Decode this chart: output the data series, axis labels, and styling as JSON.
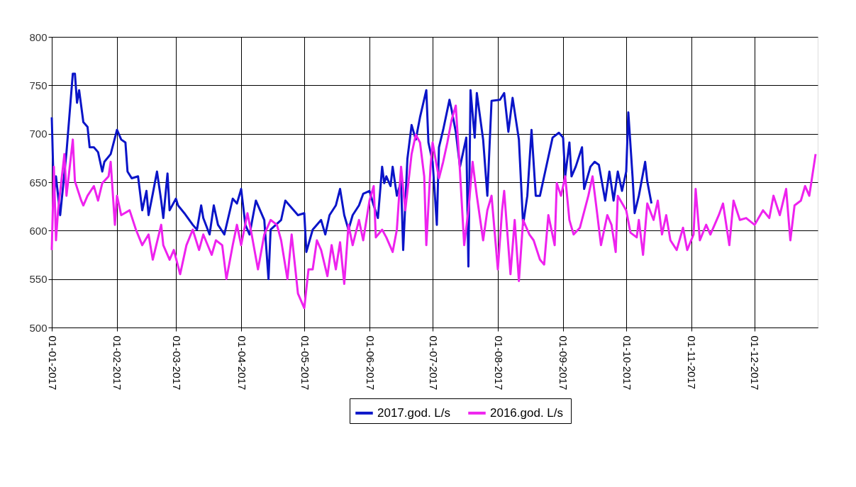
{
  "chart_data": {
    "type": "line",
    "xlim": [
      "2017-01-01",
      "2017-12-31"
    ],
    "xticks": [
      {
        "value": "2017-01-01",
        "label": "01-01-2017"
      },
      {
        "value": "2017-02-01",
        "label": "01-02-2017"
      },
      {
        "value": "2017-03-01",
        "label": "01-03-2017"
      },
      {
        "value": "2017-04-01",
        "label": "01-04-2017"
      },
      {
        "value": "2017-05-01",
        "label": "01-05-2017"
      },
      {
        "value": "2017-06-01",
        "label": "01-06-2017"
      },
      {
        "value": "2017-07-01",
        "label": "01-07-2017"
      },
      {
        "value": "2017-08-01",
        "label": "01-08-2017"
      },
      {
        "value": "2017-09-01",
        "label": "01-09-2017"
      },
      {
        "value": "2017-10-01",
        "label": "01-10-2017"
      },
      {
        "value": "2017-11-01",
        "label": "01-11-2017"
      },
      {
        "value": "2017-12-01",
        "label": "01-12-2017"
      }
    ],
    "ylim": [
      500,
      800
    ],
    "yticks": [
      500,
      550,
      600,
      650,
      700,
      750,
      800
    ],
    "grid": true,
    "legend": "bottom",
    "marker": "none",
    "line_style": "solid",
    "series": [
      {
        "name": "2017.god.  L/s",
        "color": "#0a14c8",
        "x": [
          "2017-01-01",
          "2017-01-02",
          "2017-01-03",
          "2017-01-05",
          "2017-01-08",
          "2017-01-11",
          "2017-01-12",
          "2017-01-13",
          "2017-01-14",
          "2017-01-16",
          "2017-01-18",
          "2017-01-19",
          "2017-01-21",
          "2017-01-23",
          "2017-01-25",
          "2017-01-26",
          "2017-01-29",
          "2017-02-01",
          "2017-02-03",
          "2017-02-05",
          "2017-02-06",
          "2017-02-08",
          "2017-02-11",
          "2017-02-13",
          "2017-02-15",
          "2017-02-16",
          "2017-02-18",
          "2017-02-20",
          "2017-02-22",
          "2017-02-23",
          "2017-02-25",
          "2017-02-26",
          "2017-03-01",
          "2017-03-02",
          "2017-03-05",
          "2017-03-09",
          "2017-03-11",
          "2017-03-13",
          "2017-03-14",
          "2017-03-17",
          "2017-03-19",
          "2017-03-21",
          "2017-03-24",
          "2017-03-28",
          "2017-03-30",
          "2017-04-01",
          "2017-04-03",
          "2017-04-05",
          "2017-04-08",
          "2017-04-12",
          "2017-04-14",
          "2017-04-15",
          "2017-04-20",
          "2017-04-22",
          "2017-04-28",
          "2017-05-01",
          "2017-05-02",
          "2017-05-05",
          "2017-05-09",
          "2017-05-11",
          "2017-05-13",
          "2017-05-16",
          "2017-05-18",
          "2017-05-20",
          "2017-05-22",
          "2017-05-24",
          "2017-05-27",
          "2017-05-29",
          "2017-06-01",
          "2017-06-03",
          "2017-06-05",
          "2017-06-07",
          "2017-06-08",
          "2017-06-09",
          "2017-06-11",
          "2017-06-12",
          "2017-06-14",
          "2017-06-16",
          "2017-06-17",
          "2017-06-19",
          "2017-06-21",
          "2017-06-23",
          "2017-06-25",
          "2017-06-28",
          "2017-06-29",
          "2017-07-01",
          "2017-07-03",
          "2017-07-04",
          "2017-07-06",
          "2017-07-09",
          "2017-07-10",
          "2017-07-12",
          "2017-07-14",
          "2017-07-17",
          "2017-07-18",
          "2017-07-19",
          "2017-07-21",
          "2017-07-22",
          "2017-07-25",
          "2017-07-27",
          "2017-07-29",
          "2017-08-02",
          "2017-08-04",
          "2017-08-06",
          "2017-08-08",
          "2017-08-11",
          "2017-08-13",
          "2017-08-15",
          "2017-08-17",
          "2017-08-19",
          "2017-08-21",
          "2017-08-23",
          "2017-08-27",
          "2017-08-30",
          "2017-09-01",
          "2017-09-02",
          "2017-09-04",
          "2017-09-05",
          "2017-09-07",
          "2017-09-10",
          "2017-09-11",
          "2017-09-14",
          "2017-09-16",
          "2017-09-18",
          "2017-09-21",
          "2017-09-23",
          "2017-09-25",
          "2017-09-27",
          "2017-09-29",
          "2017-10-01",
          "2017-10-02",
          "2017-10-04",
          "2017-10-05",
          "2017-10-07",
          "2017-10-10",
          "2017-10-11",
          "2017-10-13"
        ],
        "values": [
          717,
          636,
          656,
          616,
          681,
          762,
          762,
          732,
          745,
          712,
          707,
          686,
          686,
          681,
          661,
          671,
          679,
          704,
          694,
          691,
          661,
          654,
          656,
          621,
          641,
          616,
          638,
          661,
          631,
          613,
          659,
          621,
          633,
          626,
          618,
          606,
          601,
          626,
          613,
          596,
          626,
          606,
          596,
          633,
          628,
          643,
          606,
          596,
          631,
          611,
          550,
          601,
          611,
          631,
          616,
          618,
          578,
          601,
          611,
          596,
          616,
          626,
          643,
          616,
          601,
          616,
          626,
          638,
          641,
          626,
          613,
          666,
          649,
          656,
          646,
          666,
          636,
          651,
          580,
          674,
          709,
          694,
          717,
          745,
          691,
          671,
          606,
          686,
          704,
          735,
          725,
          702,
          666,
          696,
          563,
          745,
          696,
          742,
          694,
          636,
          734,
          735,
          742,
          702,
          737,
          694,
          606,
          636,
          704,
          636,
          636,
          656,
          696,
          701,
          696,
          656,
          691,
          656,
          666,
          686,
          643,
          666,
          671,
          668,
          631,
          661,
          631,
          661,
          641,
          661,
          722,
          656,
          618,
          636,
          671,
          651,
          628
        ]
      },
      {
        "name": "2016.god.  L/s",
        "color": "#ee22ee",
        "x": [
          "2017-01-01",
          "2017-01-02",
          "2017-01-03",
          "2017-01-04",
          "2017-01-07",
          "2017-01-08",
          "2017-01-11",
          "2017-01-12",
          "2017-01-15",
          "2017-01-16",
          "2017-01-18",
          "2017-01-21",
          "2017-01-23",
          "2017-01-25",
          "2017-01-28",
          "2017-01-29",
          "2017-01-31",
          "2017-02-01",
          "2017-02-03",
          "2017-02-07",
          "2017-02-10",
          "2017-02-13",
          "2017-02-16",
          "2017-02-18",
          "2017-02-22",
          "2017-02-23",
          "2017-02-26",
          "2017-02-28",
          "2017-03-03",
          "2017-03-06",
          "2017-03-09",
          "2017-03-12",
          "2017-03-14",
          "2017-03-18",
          "2017-03-20",
          "2017-03-23",
          "2017-03-25",
          "2017-03-28",
          "2017-03-30",
          "2017-04-01",
          "2017-04-04",
          "2017-04-06",
          "2017-04-09",
          "2017-04-12",
          "2017-04-15",
          "2017-04-18",
          "2017-04-20",
          "2017-04-23",
          "2017-04-25",
          "2017-04-28",
          "2017-05-01",
          "2017-05-03",
          "2017-05-05",
          "2017-05-07",
          "2017-05-09",
          "2017-05-12",
          "2017-05-14",
          "2017-05-16",
          "2017-05-18",
          "2017-05-20",
          "2017-05-22",
          "2017-05-24",
          "2017-05-27",
          "2017-05-29",
          "2017-06-01",
          "2017-06-03",
          "2017-06-04",
          "2017-06-07",
          "2017-06-09",
          "2017-06-12",
          "2017-06-14",
          "2017-06-16",
          "2017-06-18",
          "2017-06-21",
          "2017-06-23",
          "2017-06-25",
          "2017-06-27",
          "2017-06-28",
          "2017-06-30",
          "2017-07-01",
          "2017-07-04",
          "2017-07-06",
          "2017-07-08",
          "2017-07-10",
          "2017-07-12",
          "2017-07-14",
          "2017-07-16",
          "2017-07-18",
          "2017-07-20",
          "2017-07-22",
          "2017-07-25",
          "2017-07-27",
          "2017-07-29",
          "2017-08-01",
          "2017-08-03",
          "2017-08-04",
          "2017-08-07",
          "2017-08-09",
          "2017-08-11",
          "2017-08-13",
          "2017-08-16",
          "2017-08-18",
          "2017-08-21",
          "2017-08-23",
          "2017-08-25",
          "2017-08-28",
          "2017-08-29",
          "2017-08-31",
          "2017-09-02",
          "2017-09-04",
          "2017-09-06",
          "2017-09-09",
          "2017-09-13",
          "2017-09-15",
          "2017-09-17",
          "2017-09-19",
          "2017-09-22",
          "2017-09-24",
          "2017-09-26",
          "2017-09-27",
          "2017-10-01",
          "2017-10-03",
          "2017-10-06",
          "2017-10-07",
          "2017-10-09",
          "2017-10-11",
          "2017-10-14",
          "2017-10-16",
          "2017-10-18",
          "2017-10-20",
          "2017-10-22",
          "2017-10-25",
          "2017-10-28",
          "2017-10-30",
          "2017-11-02",
          "2017-11-03",
          "2017-11-05",
          "2017-11-08",
          "2017-11-10",
          "2017-11-12",
          "2017-11-14",
          "2017-11-16",
          "2017-11-19",
          "2017-11-21",
          "2017-11-24",
          "2017-11-27",
          "2017-12-01",
          "2017-12-05",
          "2017-12-08",
          "2017-12-10",
          "2017-12-13",
          "2017-12-16",
          "2017-12-18",
          "2017-12-20",
          "2017-12-23",
          "2017-12-25",
          "2017-12-27",
          "2017-12-30"
        ],
        "values": [
          580,
          666,
          590,
          621,
          679,
          636,
          694,
          651,
          631,
          626,
          636,
          646,
          631,
          649,
          656,
          671,
          606,
          636,
          616,
          621,
          601,
          585,
          596,
          570,
          606,
          585,
          570,
          580,
          555,
          585,
          601,
          580,
          596,
          575,
          590,
          585,
          550,
          585,
          606,
          585,
          618,
          596,
          560,
          596,
          611,
          606,
          590,
          550,
          596,
          535,
          520,
          560,
          560,
          590,
          580,
          553,
          585,
          560,
          588,
          545,
          606,
          585,
          611,
          590,
          631,
          646,
          593,
          601,
          593,
          578,
          601,
          666,
          621,
          679,
          699,
          691,
          656,
          585,
          666,
          691,
          654,
          671,
          691,
          714,
          729,
          661,
          585,
          621,
          671,
          636,
          590,
          621,
          636,
          560,
          621,
          641,
          555,
          611,
          548,
          611,
          596,
          590,
          570,
          565,
          616,
          585,
          649,
          636,
          656,
          611,
          596,
          603,
          636,
          656,
          621,
          585,
          616,
          606,
          578,
          636,
          621,
          598,
          593,
          611,
          575,
          628,
          611,
          631,
          596,
          616,
          590,
          580,
          603,
          580,
          596,
          643,
          590,
          606,
          596,
          606,
          616,
          628,
          585,
          631,
          611,
          613,
          606,
          621,
          613,
          636,
          616,
          643,
          590,
          626,
          631,
          646,
          636,
          679
        ]
      }
    ]
  }
}
